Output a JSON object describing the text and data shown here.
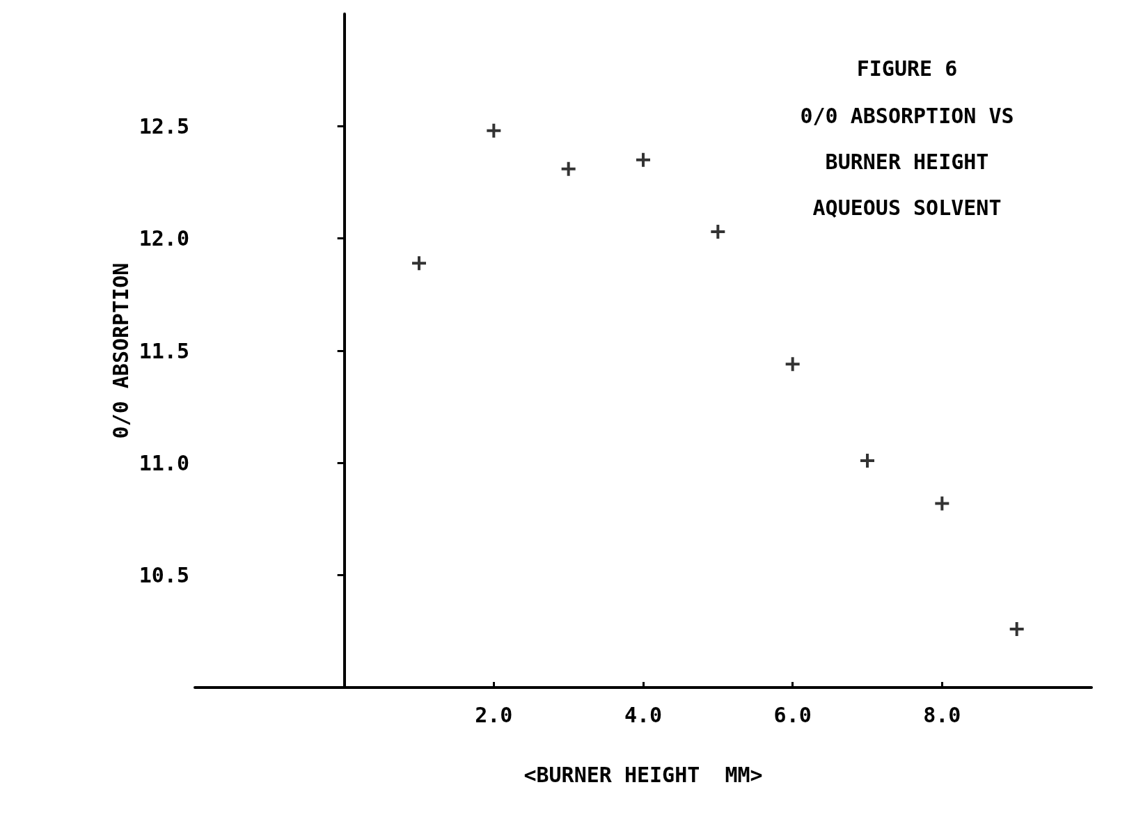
{
  "chart_data": {
    "type": "scatter",
    "title": "FIGURE 6",
    "subtitle": "0/0 ABSORPTION VS\nBURNER HEIGHT\nAQUEOUS SOLVENT",
    "xlabel": "<BURNER HEIGHT  MM>",
    "ylabel": "0/0 ABSORPTION",
    "x": [
      1,
      2,
      3,
      4,
      5,
      6,
      7,
      8,
      9
    ],
    "values": [
      11.89,
      12.48,
      12.31,
      12.35,
      12.03,
      11.44,
      11.01,
      10.82,
      10.26
    ],
    "color": "#000000",
    "marker": "cross",
    "grid": false,
    "xlim": [
      -2,
      10
    ],
    "ylim": [
      10,
      13
    ],
    "xticks": [
      {
        "value": 2,
        "label": "2.0"
      },
      {
        "value": 4,
        "label": "4.0"
      },
      {
        "value": 6,
        "label": "6.0"
      },
      {
        "value": 8,
        "label": "8.0"
      }
    ],
    "yticks": [
      {
        "value": 10.5,
        "label": "10.5"
      },
      {
        "value": 11,
        "label": "11.0"
      },
      {
        "value": 11.5,
        "label": "11.5"
      },
      {
        "value": 12,
        "label": "12.0"
      },
      {
        "value": 12.5,
        "label": "12.5"
      }
    ]
  }
}
